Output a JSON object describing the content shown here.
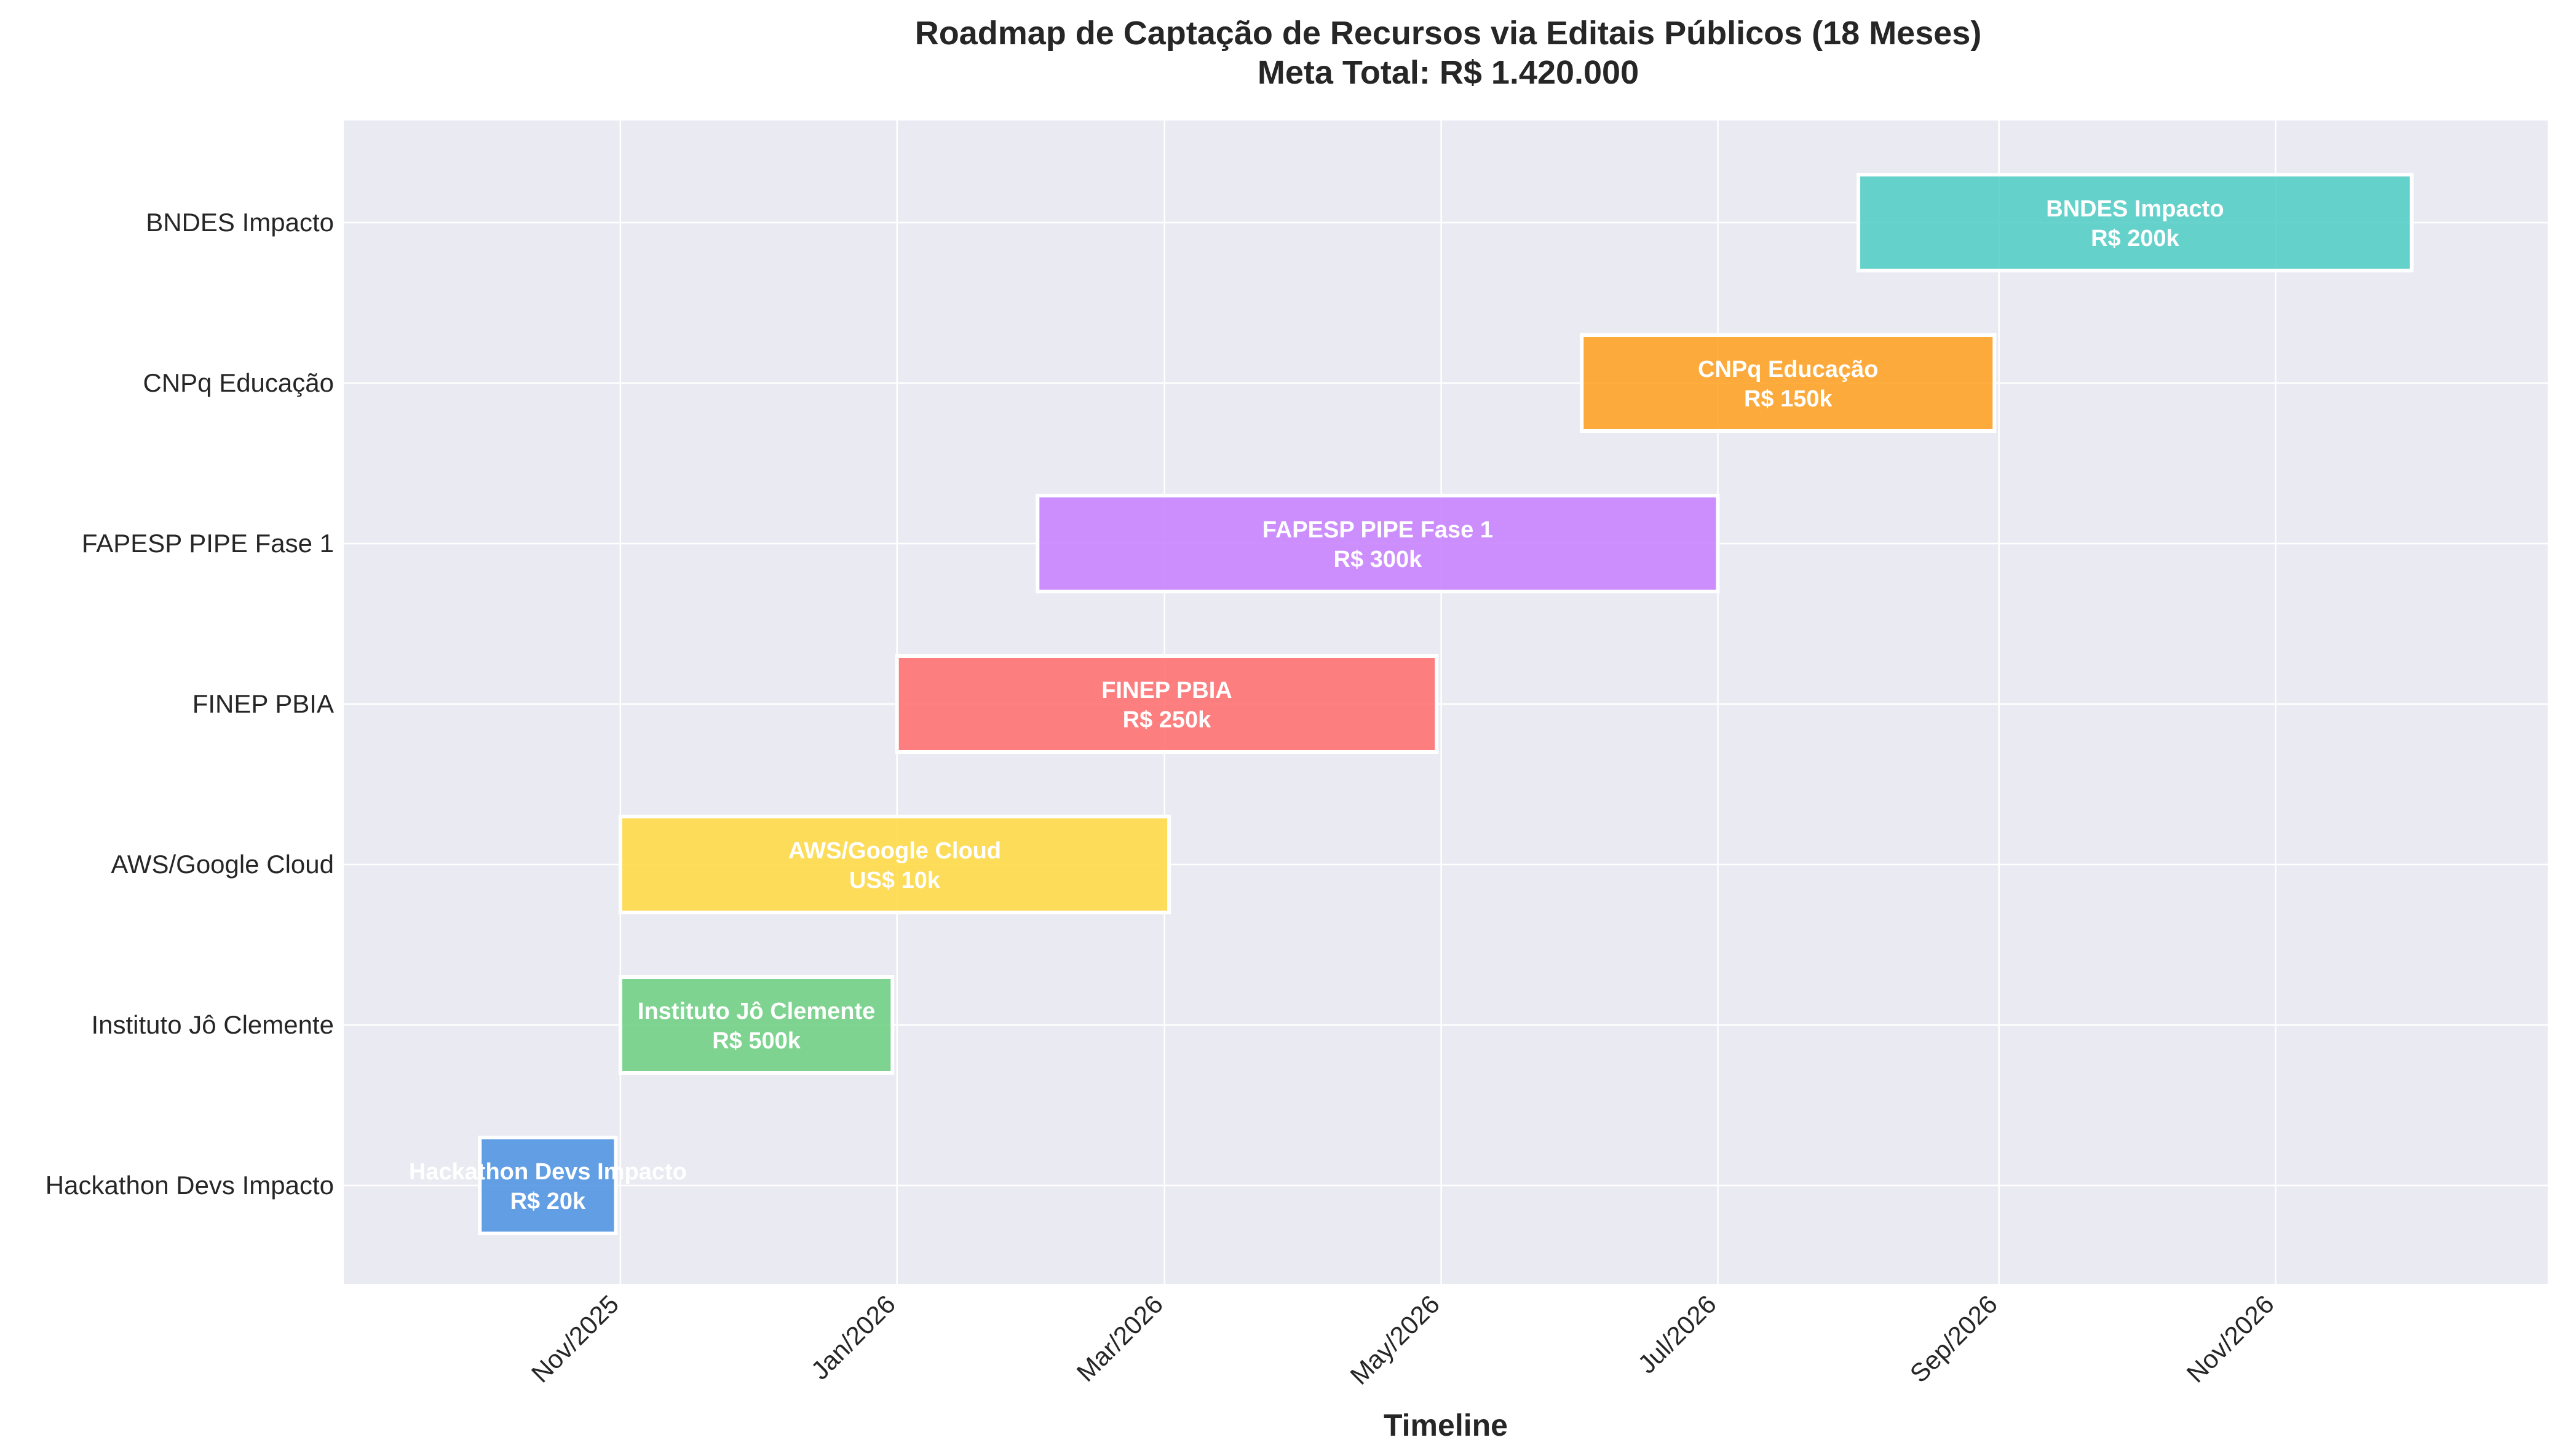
{
  "chart_data": {
    "type": "gantt",
    "title": "Roadmap de Captação de Recursos via Editais Públicos (18 Meses)",
    "subtitle": "Meta Total: R$ 1.420.000",
    "xlabel": "Timeline",
    "ylabel": "",
    "xlim": [
      "2025-09-01",
      "2026-12-31"
    ],
    "xticks": [
      {
        "date": "2025-11-01",
        "label": "Nov/2025"
      },
      {
        "date": "2026-01-01",
        "label": "Jan/2026"
      },
      {
        "date": "2026-03-01",
        "label": "Mar/2026"
      },
      {
        "date": "2026-05-01",
        "label": "May/2026"
      },
      {
        "date": "2026-07-01",
        "label": "Jul/2026"
      },
      {
        "date": "2026-09-01",
        "label": "Sep/2026"
      },
      {
        "date": "2026-11-01",
        "label": "Nov/2026"
      }
    ],
    "grid": true,
    "tasks": [
      {
        "name": "Hackathon Devs Impacto",
        "amount": "R$ 20k",
        "start": "2025-10-01",
        "end": "2025-10-31",
        "color": "#4A90E2"
      },
      {
        "name": "Instituto Jô Clemente",
        "amount": "R$ 500k",
        "start": "2025-11-01",
        "end": "2025-12-31",
        "color": "#6BCF7F"
      },
      {
        "name": "AWS/Google Cloud",
        "amount": "US$ 10k",
        "start": "2025-11-01",
        "end": "2026-03-02",
        "color": "#FFD93D"
      },
      {
        "name": "FINEP PBIA",
        "amount": "R$ 250k",
        "start": "2026-01-01",
        "end": "2026-04-30",
        "color": "#FF6B6B"
      },
      {
        "name": "FAPESP PIPE Fase 1",
        "amount": "R$ 300k",
        "start": "2026-02-01",
        "end": "2026-07-01",
        "color": "#C77DFF"
      },
      {
        "name": "CNPq Educação",
        "amount": "R$ 150k",
        "start": "2026-06-01",
        "end": "2026-08-31",
        "color": "#FF9F1C"
      },
      {
        "name": "BNDES Impacto",
        "amount": "R$ 200k",
        "start": "2026-08-01",
        "end": "2026-12-01",
        "color": "#4ECDC4"
      }
    ]
  }
}
